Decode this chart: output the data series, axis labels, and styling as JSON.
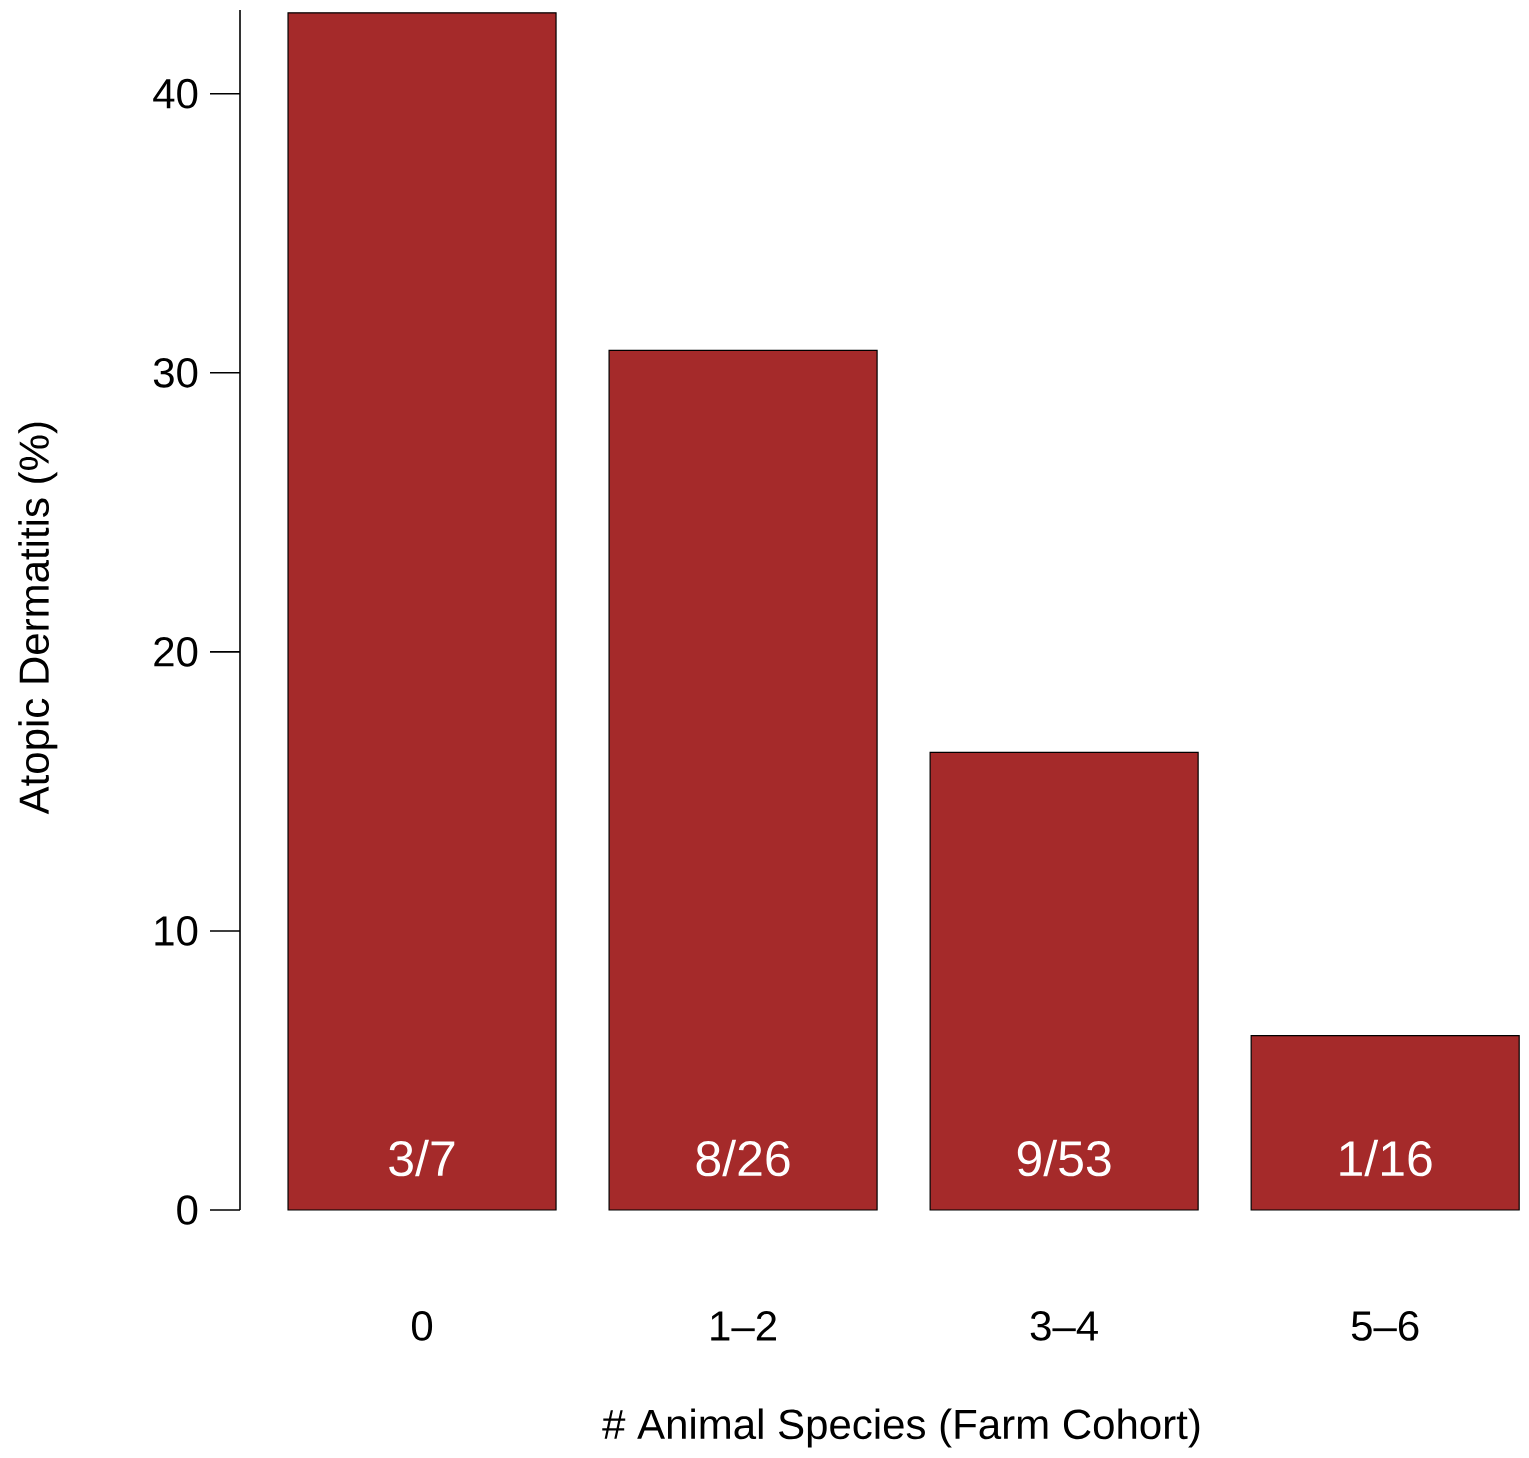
{
  "chart_data": {
    "type": "bar",
    "xlabel": "# Animal Species (Farm Cohort)",
    "ylabel": "Atopic Dermatitis (%)",
    "categories": [
      "0",
      "1–2",
      "3–4",
      "5–6"
    ],
    "values": [
      42.9,
      30.8,
      16.4,
      6.25
    ],
    "annotations": [
      "3/7",
      "8/26",
      "9/53",
      "1/16"
    ],
    "color": "#a52a2a",
    "ylim": [
      0,
      43
    ],
    "yticks": [
      0,
      10,
      20,
      30,
      40
    ]
  }
}
